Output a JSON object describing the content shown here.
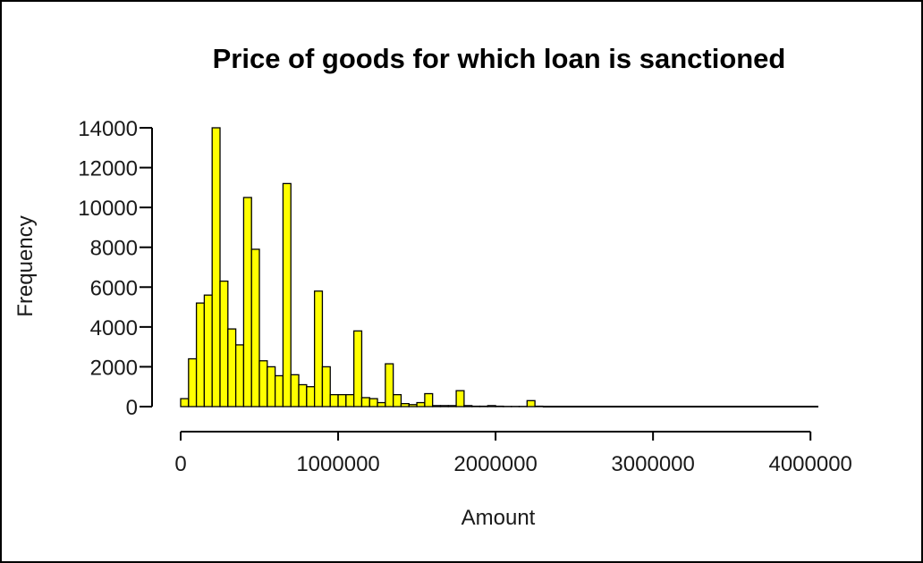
{
  "chart_data": {
    "type": "bar",
    "title": "Price of goods for which loan is sanctioned",
    "xlabel": "Amount",
    "ylabel": "Frequency",
    "bin_width": 50000,
    "xlim": [
      0,
      4050000
    ],
    "ylim": [
      0,
      14000
    ],
    "x_ticks": [
      0,
      1000000,
      2000000,
      3000000,
      4000000
    ],
    "x_tick_labels": [
      "0",
      "1000000",
      "2000000",
      "3000000",
      "4000000"
    ],
    "y_ticks": [
      0,
      2000,
      4000,
      6000,
      8000,
      10000,
      12000,
      14000
    ],
    "y_tick_labels": [
      "0",
      "2000",
      "4000",
      "6000",
      "8000",
      "10000",
      "12000",
      "14000"
    ],
    "grid": false,
    "bar_fill": "#ffff00",
    "bar_stroke": "#000000",
    "bins_start": [
      0,
      50000,
      100000,
      150000,
      200000,
      250000,
      300000,
      350000,
      400000,
      450000,
      500000,
      550000,
      600000,
      650000,
      700000,
      750000,
      800000,
      850000,
      900000,
      950000,
      1000000,
      1050000,
      1100000,
      1150000,
      1200000,
      1250000,
      1300000,
      1350000,
      1400000,
      1450000,
      1500000,
      1550000,
      1600000,
      1650000,
      1700000,
      1750000,
      1800000,
      1850000,
      1900000,
      1950000,
      2000000,
      2050000,
      2100000,
      2150000,
      2200000,
      2250000
    ],
    "values": [
      400,
      2400,
      5200,
      5600,
      14000,
      6300,
      3900,
      3100,
      10500,
      7900,
      2300,
      2000,
      1550,
      11200,
      1600,
      1100,
      1000,
      5800,
      2000,
      600,
      600,
      600,
      3800,
      450,
      400,
      200,
      2150,
      600,
      150,
      100,
      200,
      650,
      50,
      50,
      50,
      800,
      50,
      20,
      20,
      50,
      20,
      10,
      10,
      10,
      300,
      20
    ]
  }
}
